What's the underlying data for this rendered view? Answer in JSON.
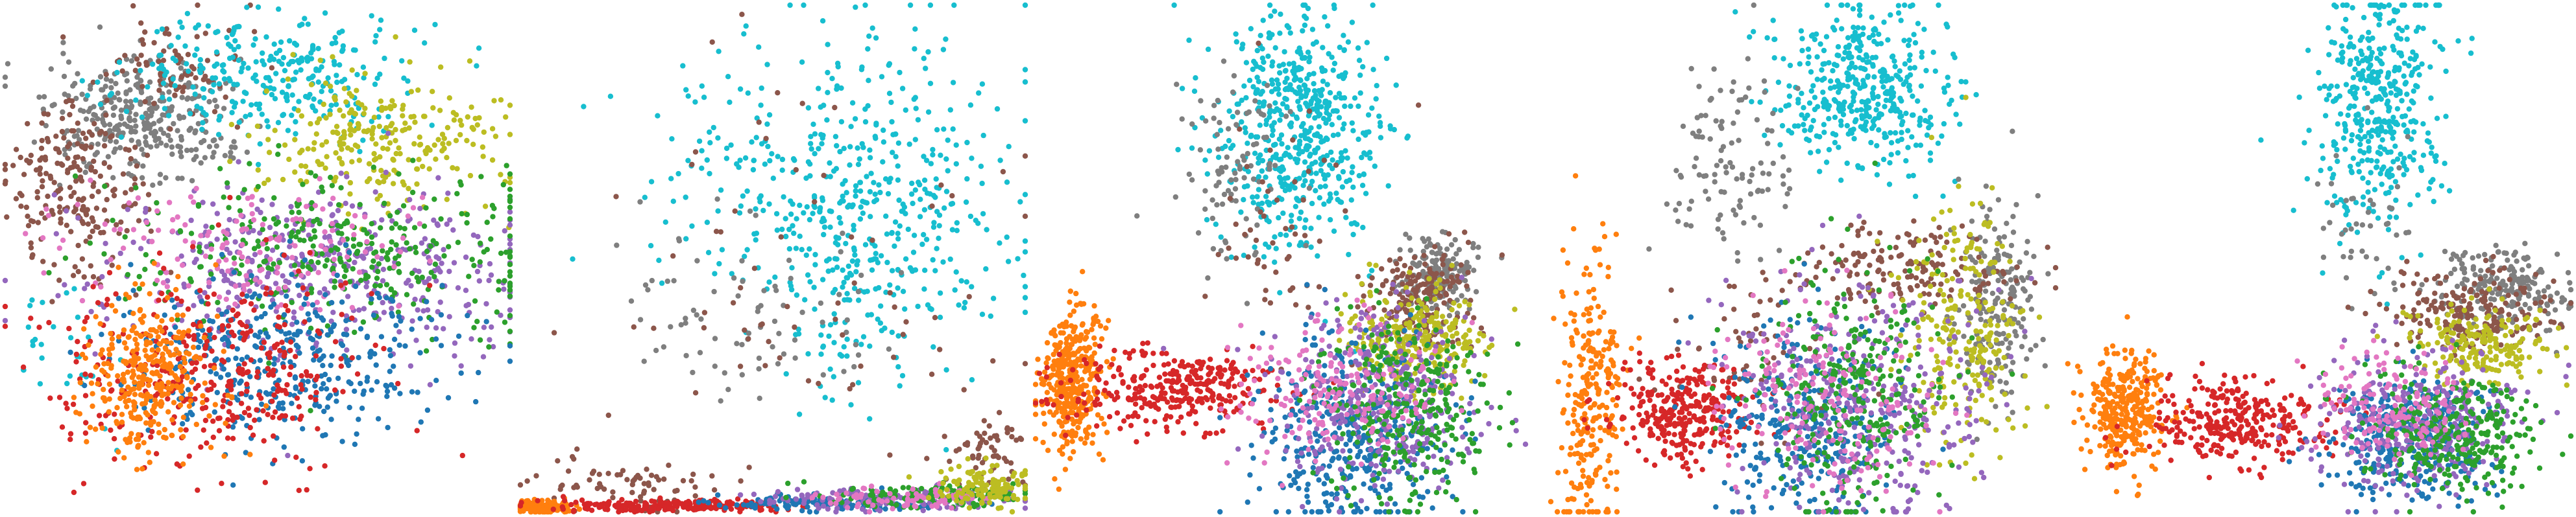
{
  "chart_data": [
    {
      "type": "scatter",
      "title": "",
      "xlabel": "",
      "ylabel": "",
      "axes_visible": false,
      "grid": false,
      "legend": "none",
      "xlim": [
        0,
        1
      ],
      "ylim": [
        0,
        1
      ],
      "series": [
        {
          "color": "#7f7f7f",
          "clusters": [
            {
              "x": 0.27,
              "y": 0.77,
              "sx": 0.09,
              "sy": 0.06,
              "n": 340
            }
          ]
        },
        {
          "color": "#8c564b",
          "clusters": [
            {
              "x": 0.14,
              "y": 0.64,
              "sx": 0.07,
              "sy": 0.09,
              "n": 220
            },
            {
              "x": 0.33,
              "y": 0.88,
              "sx": 0.07,
              "sy": 0.05,
              "n": 80
            }
          ]
        },
        {
          "color": "#17becf",
          "clusters": [
            {
              "x": 0.53,
              "y": 0.86,
              "sx": 0.13,
              "sy": 0.06,
              "n": 300
            },
            {
              "x": 0.12,
              "y": 0.35,
              "sx": 0.05,
              "sy": 0.08,
              "n": 30
            }
          ]
        },
        {
          "color": "#bcbd22",
          "clusters": [
            {
              "x": 0.74,
              "y": 0.74,
              "sx": 0.12,
              "sy": 0.07,
              "n": 260
            }
          ]
        },
        {
          "color": "#9467bd",
          "clusters": [
            {
              "x": 0.62,
              "y": 0.48,
              "sx": 0.22,
              "sy": 0.09,
              "n": 420
            }
          ]
        },
        {
          "color": "#2ca02c",
          "clusters": [
            {
              "x": 0.68,
              "y": 0.52,
              "sx": 0.2,
              "sy": 0.08,
              "n": 340
            }
          ]
        },
        {
          "color": "#e377c2",
          "clusters": [
            {
              "x": 0.48,
              "y": 0.52,
              "sx": 0.18,
              "sy": 0.06,
              "n": 160
            }
          ]
        },
        {
          "color": "#1f77b4",
          "clusters": [
            {
              "x": 0.56,
              "y": 0.3,
              "sx": 0.17,
              "sy": 0.08,
              "n": 380
            }
          ]
        },
        {
          "color": "#d62728",
          "clusters": [
            {
              "x": 0.4,
              "y": 0.28,
              "sx": 0.15,
              "sy": 0.09,
              "n": 360
            }
          ]
        },
        {
          "color": "#ff7f0e",
          "clusters": [
            {
              "x": 0.28,
              "y": 0.26,
              "sx": 0.06,
              "sy": 0.08,
              "n": 320
            }
          ]
        }
      ]
    },
    {
      "type": "scatter",
      "title": "",
      "xlabel": "",
      "ylabel": "",
      "axes_visible": false,
      "grid": false,
      "legend": "none",
      "xlim": [
        0,
        1
      ],
      "ylim": [
        0,
        1
      ],
      "series": [
        {
          "color": "#17becf",
          "clusters": [
            {
              "x": 0.69,
              "y": 0.6,
              "sx": 0.14,
              "sy": 0.17,
              "n": 520
            },
            {
              "x": 0.38,
              "y": 0.66,
              "sx": 0.1,
              "sy": 0.1,
              "n": 40
            }
          ]
        },
        {
          "color": "#7f7f7f",
          "clusters": [
            {
              "x": 0.45,
              "y": 0.4,
              "sx": 0.13,
              "sy": 0.1,
              "n": 80
            }
          ]
        },
        {
          "color": "#8c564b",
          "clusters": [
            {
              "x": 0.55,
              "y": 0.5,
              "sx": 0.2,
              "sy": 0.2,
              "n": 70
            },
            {
              "x": 0.22,
              "y": 0.05,
              "sx": 0.1,
              "sy": 0.03,
              "n": 70
            },
            {
              "x": 0.93,
              "y": 0.12,
              "sx": 0.04,
              "sy": 0.04,
              "n": 60
            }
          ]
        },
        {
          "color": "#ff7f0e",
          "clusters": [
            {
              "x": 0.04,
              "y": 0.01,
              "sx": 0.03,
              "sy": 0.006,
              "n": 160
            }
          ]
        },
        {
          "color": "#d62728",
          "clusters": [
            {
              "x": 0.3,
              "y": 0.012,
              "sx": 0.12,
              "sy": 0.006,
              "n": 220
            }
          ]
        },
        {
          "color": "#1f77b4",
          "clusters": [
            {
              "x": 0.62,
              "y": 0.018,
              "sx": 0.12,
              "sy": 0.008,
              "n": 160
            }
          ]
        },
        {
          "color": "#9467bd",
          "clusters": [
            {
              "x": 0.72,
              "y": 0.025,
              "sx": 0.12,
              "sy": 0.01,
              "n": 160
            }
          ]
        },
        {
          "color": "#2ca02c",
          "clusters": [
            {
              "x": 0.8,
              "y": 0.03,
              "sx": 0.1,
              "sy": 0.012,
              "n": 130
            }
          ]
        },
        {
          "color": "#e377c2",
          "clusters": [
            {
              "x": 0.76,
              "y": 0.028,
              "sx": 0.1,
              "sy": 0.012,
              "n": 80
            }
          ]
        },
        {
          "color": "#bcbd22",
          "clusters": [
            {
              "x": 0.92,
              "y": 0.05,
              "sx": 0.05,
              "sy": 0.02,
              "n": 120
            }
          ]
        }
      ]
    },
    {
      "type": "scatter",
      "title": "",
      "xlabel": "",
      "ylabel": "",
      "axes_visible": false,
      "grid": false,
      "legend": "none",
      "xlim": [
        0,
        1
      ],
      "ylim": [
        0,
        1
      ],
      "series": [
        {
          "color": "#17becf",
          "clusters": [
            {
              "x": 0.52,
              "y": 0.76,
              "sx": 0.08,
              "sy": 0.12,
              "n": 560
            }
          ]
        },
        {
          "color": "#7f7f7f",
          "clusters": [
            {
              "x": 0.4,
              "y": 0.68,
              "sx": 0.06,
              "sy": 0.1,
              "n": 90
            },
            {
              "x": 0.8,
              "y": 0.47,
              "sx": 0.04,
              "sy": 0.04,
              "n": 180
            }
          ]
        },
        {
          "color": "#8c564b",
          "clusters": [
            {
              "x": 0.76,
              "y": 0.42,
              "sx": 0.05,
              "sy": 0.05,
              "n": 180
            },
            {
              "x": 0.45,
              "y": 0.55,
              "sx": 0.08,
              "sy": 0.12,
              "n": 50
            }
          ]
        },
        {
          "color": "#bcbd22",
          "clusters": [
            {
              "x": 0.74,
              "y": 0.34,
              "sx": 0.07,
              "sy": 0.05,
              "n": 260
            }
          ]
        },
        {
          "color": "#ff7f0e",
          "clusters": [
            {
              "x": 0.07,
              "y": 0.26,
              "sx": 0.03,
              "sy": 0.07,
              "n": 360
            }
          ]
        },
        {
          "color": "#d62728",
          "clusters": [
            {
              "x": 0.28,
              "y": 0.24,
              "sx": 0.1,
              "sy": 0.04,
              "n": 320
            }
          ]
        },
        {
          "color": "#1f77b4",
          "clusters": [
            {
              "x": 0.62,
              "y": 0.16,
              "sx": 0.09,
              "sy": 0.09,
              "n": 380
            }
          ]
        },
        {
          "color": "#9467bd",
          "clusters": [
            {
              "x": 0.68,
              "y": 0.22,
              "sx": 0.1,
              "sy": 0.09,
              "n": 360
            }
          ]
        },
        {
          "color": "#2ca02c",
          "clusters": [
            {
              "x": 0.74,
              "y": 0.2,
              "sx": 0.08,
              "sy": 0.09,
              "n": 300
            }
          ]
        },
        {
          "color": "#e377c2",
          "clusters": [
            {
              "x": 0.58,
              "y": 0.24,
              "sx": 0.1,
              "sy": 0.07,
              "n": 180
            }
          ]
        }
      ]
    },
    {
      "type": "scatter",
      "title": "",
      "xlabel": "",
      "ylabel": "",
      "axes_visible": false,
      "grid": false,
      "legend": "none",
      "xlim": [
        0,
        1
      ],
      "ylim": [
        0,
        1
      ],
      "series": [
        {
          "color": "#17becf",
          "clusters": [
            {
              "x": 0.62,
              "y": 0.83,
              "sx": 0.09,
              "sy": 0.08,
              "n": 420
            }
          ]
        },
        {
          "color": "#7f7f7f",
          "clusters": [
            {
              "x": 0.35,
              "y": 0.7,
              "sx": 0.06,
              "sy": 0.1,
              "n": 110
            },
            {
              "x": 0.88,
              "y": 0.42,
              "sx": 0.04,
              "sy": 0.1,
              "n": 200
            }
          ]
        },
        {
          "color": "#8c564b",
          "clusters": [
            {
              "x": 0.7,
              "y": 0.48,
              "sx": 0.12,
              "sy": 0.04,
              "n": 160
            },
            {
              "x": 0.4,
              "y": 0.32,
              "sx": 0.1,
              "sy": 0.08,
              "n": 60
            }
          ]
        },
        {
          "color": "#bcbd22",
          "clusters": [
            {
              "x": 0.82,
              "y": 0.36,
              "sx": 0.06,
              "sy": 0.12,
              "n": 240
            }
          ]
        },
        {
          "color": "#ff7f0e",
          "clusters": [
            {
              "x": 0.08,
              "y": 0.22,
              "sx": 0.03,
              "sy": 0.14,
              "n": 260
            }
          ]
        },
        {
          "color": "#d62728",
          "clusters": [
            {
              "x": 0.26,
              "y": 0.2,
              "sx": 0.07,
              "sy": 0.05,
              "n": 300
            }
          ]
        },
        {
          "color": "#1f77b4",
          "clusters": [
            {
              "x": 0.5,
              "y": 0.18,
              "sx": 0.09,
              "sy": 0.1,
              "n": 300
            }
          ]
        },
        {
          "color": "#9467bd",
          "clusters": [
            {
              "x": 0.62,
              "y": 0.22,
              "sx": 0.12,
              "sy": 0.12,
              "n": 360
            }
          ]
        },
        {
          "color": "#2ca02c",
          "clusters": [
            {
              "x": 0.6,
              "y": 0.24,
              "sx": 0.1,
              "sy": 0.12,
              "n": 300
            }
          ]
        },
        {
          "color": "#e377c2",
          "clusters": [
            {
              "x": 0.55,
              "y": 0.22,
              "sx": 0.1,
              "sy": 0.1,
              "n": 200
            }
          ]
        }
      ]
    },
    {
      "type": "scatter",
      "title": "",
      "xlabel": "",
      "ylabel": "",
      "axes_visible": false,
      "grid": false,
      "legend": "none",
      "xlim": [
        0,
        1
      ],
      "ylim": [
        0,
        1
      ],
      "series": [
        {
          "color": "#17becf",
          "clusters": [
            {
              "x": 0.62,
              "y": 0.8,
              "sx": 0.06,
              "sy": 0.12,
              "n": 420
            }
          ]
        },
        {
          "color": "#7f7f7f",
          "clusters": [
            {
              "x": 0.87,
              "y": 0.44,
              "sx": 0.07,
              "sy": 0.04,
              "n": 200
            },
            {
              "x": 0.58,
              "y": 0.58,
              "sx": 0.05,
              "sy": 0.08,
              "n": 40
            }
          ]
        },
        {
          "color": "#8c564b",
          "clusters": [
            {
              "x": 0.8,
              "y": 0.4,
              "sx": 0.08,
              "sy": 0.04,
              "n": 200
            }
          ]
        },
        {
          "color": "#bcbd22",
          "clusters": [
            {
              "x": 0.82,
              "y": 0.33,
              "sx": 0.07,
              "sy": 0.04,
              "n": 200
            }
          ]
        },
        {
          "color": "#ff7f0e",
          "clusters": [
            {
              "x": 0.12,
              "y": 0.2,
              "sx": 0.04,
              "sy": 0.06,
              "n": 320
            }
          ]
        },
        {
          "color": "#d62728",
          "clusters": [
            {
              "x": 0.34,
              "y": 0.18,
              "sx": 0.09,
              "sy": 0.04,
              "n": 300
            }
          ]
        },
        {
          "color": "#1f77b4",
          "clusters": [
            {
              "x": 0.68,
              "y": 0.14,
              "sx": 0.09,
              "sy": 0.06,
              "n": 360
            }
          ]
        },
        {
          "color": "#9467bd",
          "clusters": [
            {
              "x": 0.7,
              "y": 0.18,
              "sx": 0.1,
              "sy": 0.07,
              "n": 340
            }
          ]
        },
        {
          "color": "#2ca02c",
          "clusters": [
            {
              "x": 0.78,
              "y": 0.16,
              "sx": 0.09,
              "sy": 0.06,
              "n": 300
            }
          ]
        },
        {
          "color": "#e377c2",
          "clusters": [
            {
              "x": 0.64,
              "y": 0.2,
              "sx": 0.08,
              "sy": 0.05,
              "n": 160
            }
          ]
        }
      ]
    }
  ]
}
